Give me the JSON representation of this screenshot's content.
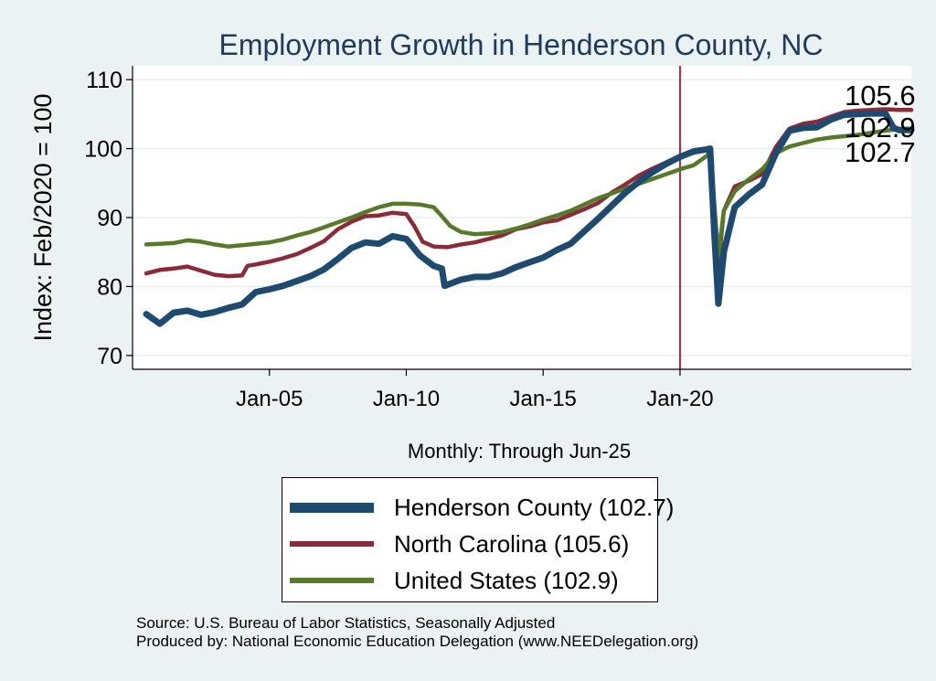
{
  "chart_data": {
    "type": "line",
    "title": "Employment Growth in Henderson  County, NC",
    "ylabel": "Index: Feb/2020 = 100",
    "xlabel": "Monthly: Through Jun-25",
    "ylim": [
      68,
      112
    ],
    "xlim": [
      2000.0,
      2028.45
    ],
    "yticks": [
      70,
      80,
      90,
      100,
      110
    ],
    "xticks": [
      {
        "value": 2005,
        "label": "Jan-05"
      },
      {
        "value": 2010,
        "label": "Jan-10"
      },
      {
        "value": 2015,
        "label": "Jan-15"
      },
      {
        "value": 2020,
        "label": "Jan-20"
      }
    ],
    "reference_line": {
      "x": 2020.0,
      "color": "#b0283f"
    },
    "grid": true,
    "series": [
      {
        "name": "North Carolina",
        "color": "#8b2b3a",
        "end_label": "105.6",
        "points": [
          [
            2000.5,
            81.9
          ],
          [
            2001,
            82.4
          ],
          [
            2001.5,
            82.6
          ],
          [
            2002,
            82.9
          ],
          [
            2002.5,
            82.3
          ],
          [
            2003,
            81.7
          ],
          [
            2003.5,
            81.5
          ],
          [
            2004,
            81.6
          ],
          [
            2004.2,
            83.0
          ],
          [
            2004.5,
            83.2
          ],
          [
            2005,
            83.6
          ],
          [
            2005.5,
            84.1
          ],
          [
            2006,
            84.7
          ],
          [
            2006.5,
            85.6
          ],
          [
            2007,
            86.6
          ],
          [
            2007.5,
            88.3
          ],
          [
            2008,
            89.4
          ],
          [
            2008.5,
            90.2
          ],
          [
            2009,
            90.3
          ],
          [
            2009.5,
            90.7
          ],
          [
            2010,
            90.5
          ],
          [
            2010.3,
            88.7
          ],
          [
            2010.6,
            86.5
          ],
          [
            2011,
            85.8
          ],
          [
            2011.5,
            85.7
          ],
          [
            2012,
            86.1
          ],
          [
            2012.5,
            86.4
          ],
          [
            2013,
            86.9
          ],
          [
            2013.5,
            87.4
          ],
          [
            2014,
            88.3
          ],
          [
            2014.5,
            88.7
          ],
          [
            2015,
            89.3
          ],
          [
            2015.5,
            89.6
          ],
          [
            2016,
            90.4
          ],
          [
            2016.5,
            91.2
          ],
          [
            2017,
            92.1
          ],
          [
            2017.5,
            93.6
          ],
          [
            2018,
            94.8
          ],
          [
            2018.5,
            96.1
          ],
          [
            2019,
            97.1
          ],
          [
            2019.5,
            98.0
          ],
          [
            2020,
            98.9
          ],
          [
            2020.5,
            99.4
          ],
          [
            2021,
            99.9
          ],
          [
            2021.1,
            100.0
          ],
          [
            2021.25,
            90.0
          ],
          [
            2021.4,
            83.0
          ],
          [
            2021.6,
            91.0
          ],
          [
            2022,
            94.5
          ],
          [
            2022.5,
            95.3
          ],
          [
            2023,
            96.3
          ],
          [
            2023.5,
            100.2
          ],
          [
            2024,
            102.9
          ],
          [
            2024.5,
            103.6
          ],
          [
            2025,
            103.9
          ],
          [
            2025.5,
            104.6
          ],
          [
            2026,
            105.3
          ],
          [
            2026.5,
            105.5
          ],
          [
            2027,
            105.6
          ],
          [
            2027.5,
            105.7
          ],
          [
            2028,
            105.6
          ],
          [
            2028.45,
            105.6
          ]
        ]
      },
      {
        "name": "United States",
        "color": "#567a2a",
        "end_label": "102.9",
        "points": [
          [
            2000.5,
            86.1
          ],
          [
            2001,
            86.2
          ],
          [
            2001.5,
            86.3
          ],
          [
            2002,
            86.7
          ],
          [
            2002.5,
            86.5
          ],
          [
            2003,
            86.1
          ],
          [
            2003.5,
            85.8
          ],
          [
            2004,
            86.0
          ],
          [
            2004.5,
            86.2
          ],
          [
            2005,
            86.4
          ],
          [
            2005.5,
            86.8
          ],
          [
            2006,
            87.4
          ],
          [
            2006.5,
            87.9
          ],
          [
            2007,
            88.6
          ],
          [
            2007.5,
            89.3
          ],
          [
            2008,
            90.0
          ],
          [
            2008.5,
            90.8
          ],
          [
            2009,
            91.5
          ],
          [
            2009.5,
            92.0
          ],
          [
            2010,
            92.0
          ],
          [
            2010.5,
            91.9
          ],
          [
            2011,
            91.5
          ],
          [
            2011.3,
            90.2
          ],
          [
            2011.6,
            88.8
          ],
          [
            2012,
            87.9
          ],
          [
            2012.5,
            87.6
          ],
          [
            2013,
            87.7
          ],
          [
            2013.5,
            87.9
          ],
          [
            2014,
            88.4
          ],
          [
            2014.5,
            89.0
          ],
          [
            2015,
            89.7
          ],
          [
            2015.5,
            90.3
          ],
          [
            2016,
            91.0
          ],
          [
            2016.5,
            91.9
          ],
          [
            2017,
            92.8
          ],
          [
            2017.5,
            93.5
          ],
          [
            2018,
            94.2
          ],
          [
            2018.5,
            94.9
          ],
          [
            2019,
            95.6
          ],
          [
            2019.5,
            96.3
          ],
          [
            2020,
            97.0
          ],
          [
            2020.5,
            97.6
          ],
          [
            2021,
            99.0
          ],
          [
            2021.1,
            100.0
          ],
          [
            2021.25,
            92.0
          ],
          [
            2021.4,
            84.5
          ],
          [
            2021.6,
            91.0
          ],
          [
            2022,
            93.8
          ],
          [
            2022.5,
            95.5
          ],
          [
            2023,
            97.0
          ],
          [
            2023.5,
            99.3
          ],
          [
            2024,
            100.3
          ],
          [
            2024.5,
            100.8
          ],
          [
            2025,
            101.3
          ],
          [
            2025.5,
            101.6
          ],
          [
            2026,
            101.8
          ],
          [
            2026.5,
            102.0
          ],
          [
            2027,
            102.3
          ],
          [
            2027.5,
            102.6
          ],
          [
            2028,
            102.8
          ],
          [
            2028.45,
            102.9
          ]
        ]
      },
      {
        "name": "Henderson  County",
        "color": "#1f4a70",
        "end_label": "102.7",
        "points": [
          [
            2000.5,
            76.0
          ],
          [
            2001,
            74.6
          ],
          [
            2001.5,
            76.2
          ],
          [
            2002,
            76.5
          ],
          [
            2002.5,
            75.9
          ],
          [
            2003,
            76.3
          ],
          [
            2003.5,
            76.9
          ],
          [
            2004,
            77.4
          ],
          [
            2004.5,
            79.2
          ],
          [
            2005,
            79.6
          ],
          [
            2005.5,
            80.1
          ],
          [
            2006,
            80.8
          ],
          [
            2006.5,
            81.5
          ],
          [
            2007,
            82.5
          ],
          [
            2007.5,
            84.0
          ],
          [
            2008,
            85.6
          ],
          [
            2008.5,
            86.4
          ],
          [
            2009,
            86.2
          ],
          [
            2009.5,
            87.3
          ],
          [
            2010,
            86.9
          ],
          [
            2010.5,
            84.5
          ],
          [
            2011,
            83.0
          ],
          [
            2011.3,
            82.6
          ],
          [
            2011.4,
            80.1
          ],
          [
            2012,
            81.0
          ],
          [
            2012.5,
            81.4
          ],
          [
            2013,
            81.4
          ],
          [
            2013.5,
            81.9
          ],
          [
            2014,
            82.8
          ],
          [
            2014.5,
            83.5
          ],
          [
            2015,
            84.2
          ],
          [
            2015.5,
            85.3
          ],
          [
            2016,
            86.2
          ],
          [
            2016.5,
            88.0
          ],
          [
            2017,
            89.8
          ],
          [
            2017.5,
            91.7
          ],
          [
            2018,
            93.6
          ],
          [
            2018.5,
            95.2
          ],
          [
            2019,
            96.6
          ],
          [
            2019.5,
            97.8
          ],
          [
            2020,
            98.8
          ],
          [
            2020.5,
            99.6
          ],
          [
            2021,
            99.9
          ],
          [
            2021.1,
            100.0
          ],
          [
            2021.25,
            88.0
          ],
          [
            2021.4,
            77.5
          ],
          [
            2021.6,
            85.0
          ],
          [
            2022,
            91.5
          ],
          [
            2022.5,
            93.3
          ],
          [
            2023,
            94.8
          ],
          [
            2023.5,
            99.3
          ],
          [
            2024,
            102.6
          ],
          [
            2024.5,
            103.0
          ],
          [
            2025,
            103.1
          ],
          [
            2025.5,
            104.2
          ],
          [
            2026,
            104.9
          ],
          [
            2026.5,
            105.0
          ],
          [
            2027,
            105.1
          ],
          [
            2027.5,
            105.1
          ],
          [
            2027.8,
            103.0
          ],
          [
            2028,
            102.7
          ],
          [
            2028.45,
            102.7
          ]
        ]
      }
    ]
  },
  "legend": {
    "items": [
      {
        "label": "Henderson  County (102.7)",
        "color": "#1f4a70",
        "thickness": "thick"
      },
      {
        "label": "North Carolina (105.6)",
        "color": "#8b2b3a",
        "thickness": "medium"
      },
      {
        "label": "United States (102.9)",
        "color": "#567a2a",
        "thickness": "medium"
      }
    ]
  },
  "footer": {
    "source": "Source: U.S. Bureau of Labor Statistics, Seasonally Adjusted",
    "produced_by": "Produced by: National Economic Education Delegation (www.NEEDelegation.org)"
  }
}
